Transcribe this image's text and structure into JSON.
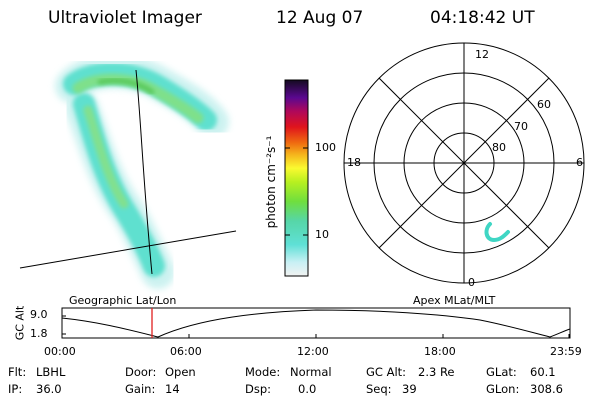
{
  "header": {
    "instrument": "Ultraviolet Imager",
    "date": "12 Aug 07",
    "time": "04:18:42 UT"
  },
  "colorbar": {
    "label": "photon cm⁻²s⁻¹",
    "ticks": [
      "100",
      "10"
    ]
  },
  "polar": {
    "mlt_labels": [
      "12",
      "18",
      "6",
      "0"
    ],
    "lat_labels": [
      "60",
      "70",
      "80"
    ]
  },
  "orbit": {
    "left_title": "Geographic Lat/Lon",
    "right_title": "Apex MLat/MLT",
    "y_label": "GC Alt",
    "y_ticks": [
      "9.0",
      "1.8"
    ],
    "x_ticks": [
      "00:00",
      "06:00",
      "12:00",
      "18:00",
      "23:59"
    ]
  },
  "info": {
    "row1": [
      {
        "key": "Flt:",
        "value": "LBHL"
      },
      {
        "key": "Door:",
        "value": "Open"
      },
      {
        "key": "Mode:",
        "value": "Normal"
      },
      {
        "key": "GC Alt:",
        "value": "2.3 Re"
      },
      {
        "key": "GLat:",
        "value": "60.1"
      }
    ],
    "row2": [
      {
        "key": "IP:",
        "value": "36.0"
      },
      {
        "key": "Gain:",
        "value": "14"
      },
      {
        "key": "Dsp:",
        "value": "0.0"
      },
      {
        "key": "Seq:",
        "value": "39"
      },
      {
        "key": "GLon:",
        "value": "308.6"
      }
    ]
  },
  "colors": {
    "aurora_low": "#57e0cf",
    "aurora_mid": "#7fe08a",
    "aurora_high": "#58c85a",
    "marker": "#e02020"
  }
}
